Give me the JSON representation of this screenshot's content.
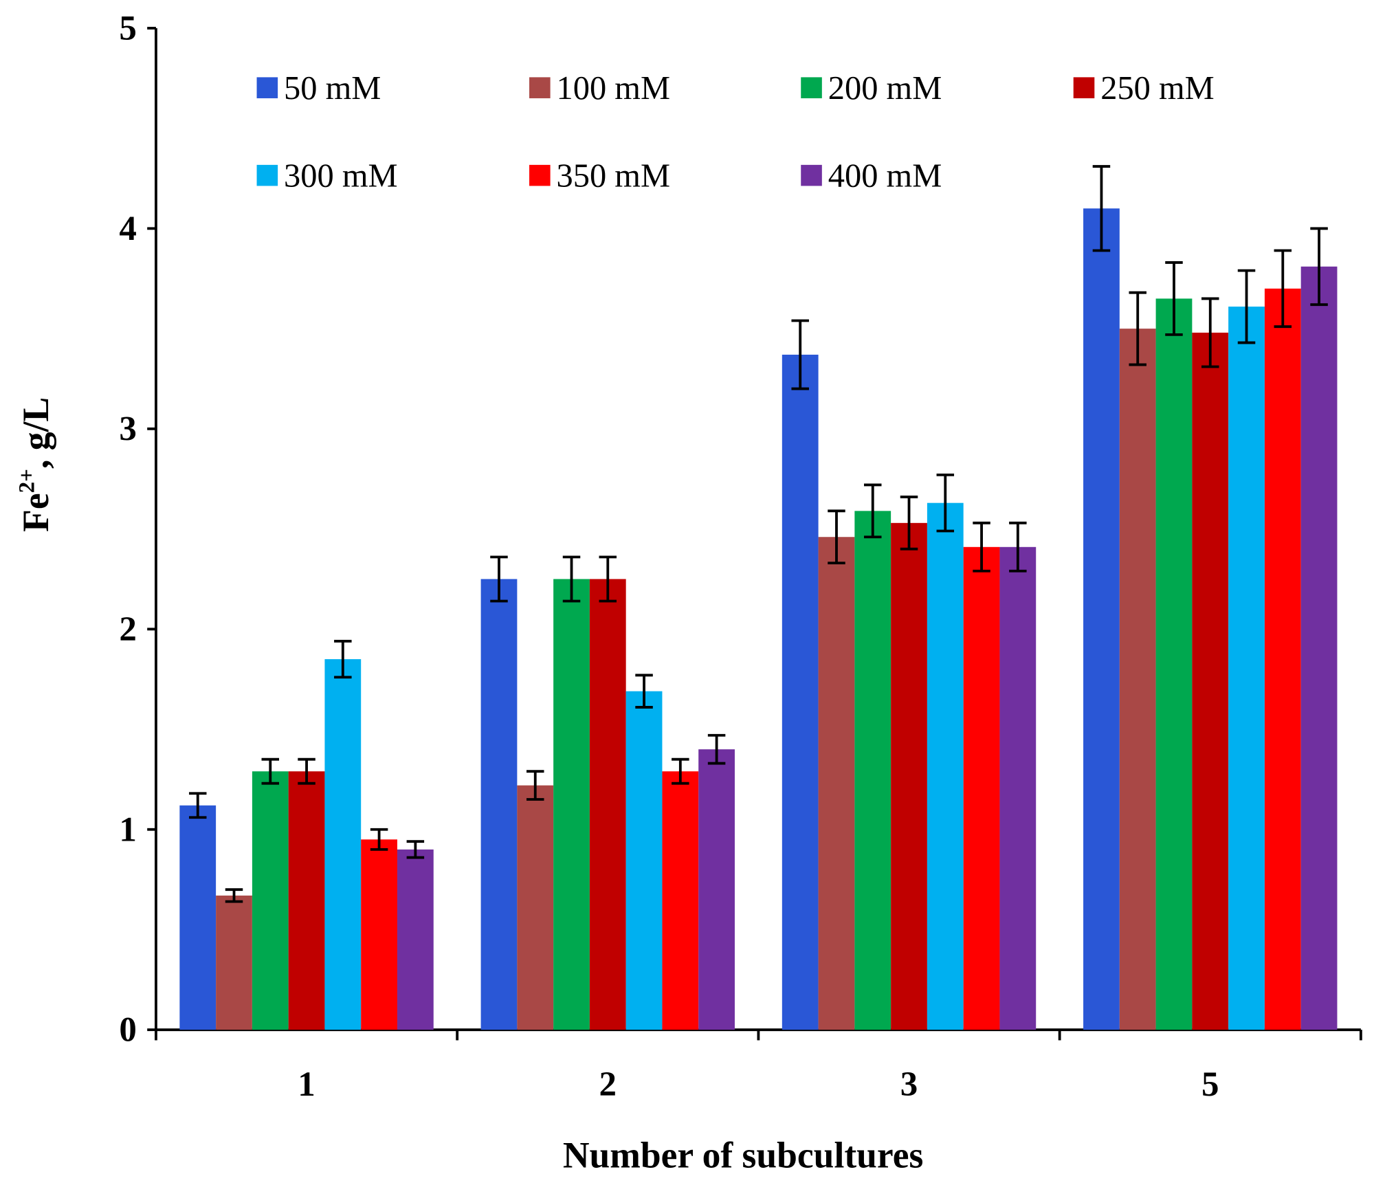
{
  "chart_data": {
    "type": "bar",
    "title": "",
    "xlabel": "Number of subcultures",
    "ylabel": "Fe2+, g/L",
    "ylabel_parts": {
      "base": "Fe",
      "sup": "2+",
      "rest": ",  g/L"
    },
    "ylim": [
      0,
      5
    ],
    "yticks": [
      "0",
      "1",
      "2",
      "3",
      "4",
      "5"
    ],
    "categories": [
      "1",
      "2",
      "3",
      "5"
    ],
    "legend_position": "top",
    "series": [
      {
        "name": "50 mM",
        "color": "#2a57d6",
        "values": [
          1.12,
          2.25,
          3.37,
          4.1
        ],
        "errors": [
          0.06,
          0.11,
          0.17,
          0.21
        ]
      },
      {
        "name": "100 mM",
        "color": "#a94846",
        "values": [
          0.67,
          1.22,
          2.46,
          3.5
        ],
        "errors": [
          0.03,
          0.07,
          0.13,
          0.18
        ]
      },
      {
        "name": "200 mM",
        "color": "#00a84f",
        "values": [
          1.29,
          2.25,
          2.59,
          3.65
        ],
        "errors": [
          0.06,
          0.11,
          0.13,
          0.18
        ]
      },
      {
        "name": "250 mM",
        "color": "#c00000",
        "values": [
          1.29,
          2.25,
          2.53,
          3.48
        ],
        "errors": [
          0.06,
          0.11,
          0.13,
          0.17
        ]
      },
      {
        "name": "300 mM",
        "color": "#00b0f0",
        "values": [
          1.85,
          1.69,
          2.63,
          3.61
        ],
        "errors": [
          0.09,
          0.08,
          0.14,
          0.18
        ]
      },
      {
        "name": "350 mM",
        "color": "#ff0000",
        "values": [
          0.95,
          1.29,
          2.41,
          3.7
        ],
        "errors": [
          0.05,
          0.06,
          0.12,
          0.19
        ]
      },
      {
        "name": "400 mM",
        "color": "#7030a0",
        "values": [
          0.9,
          1.4,
          2.41,
          3.81
        ],
        "errors": [
          0.04,
          0.07,
          0.12,
          0.19
        ]
      }
    ]
  }
}
